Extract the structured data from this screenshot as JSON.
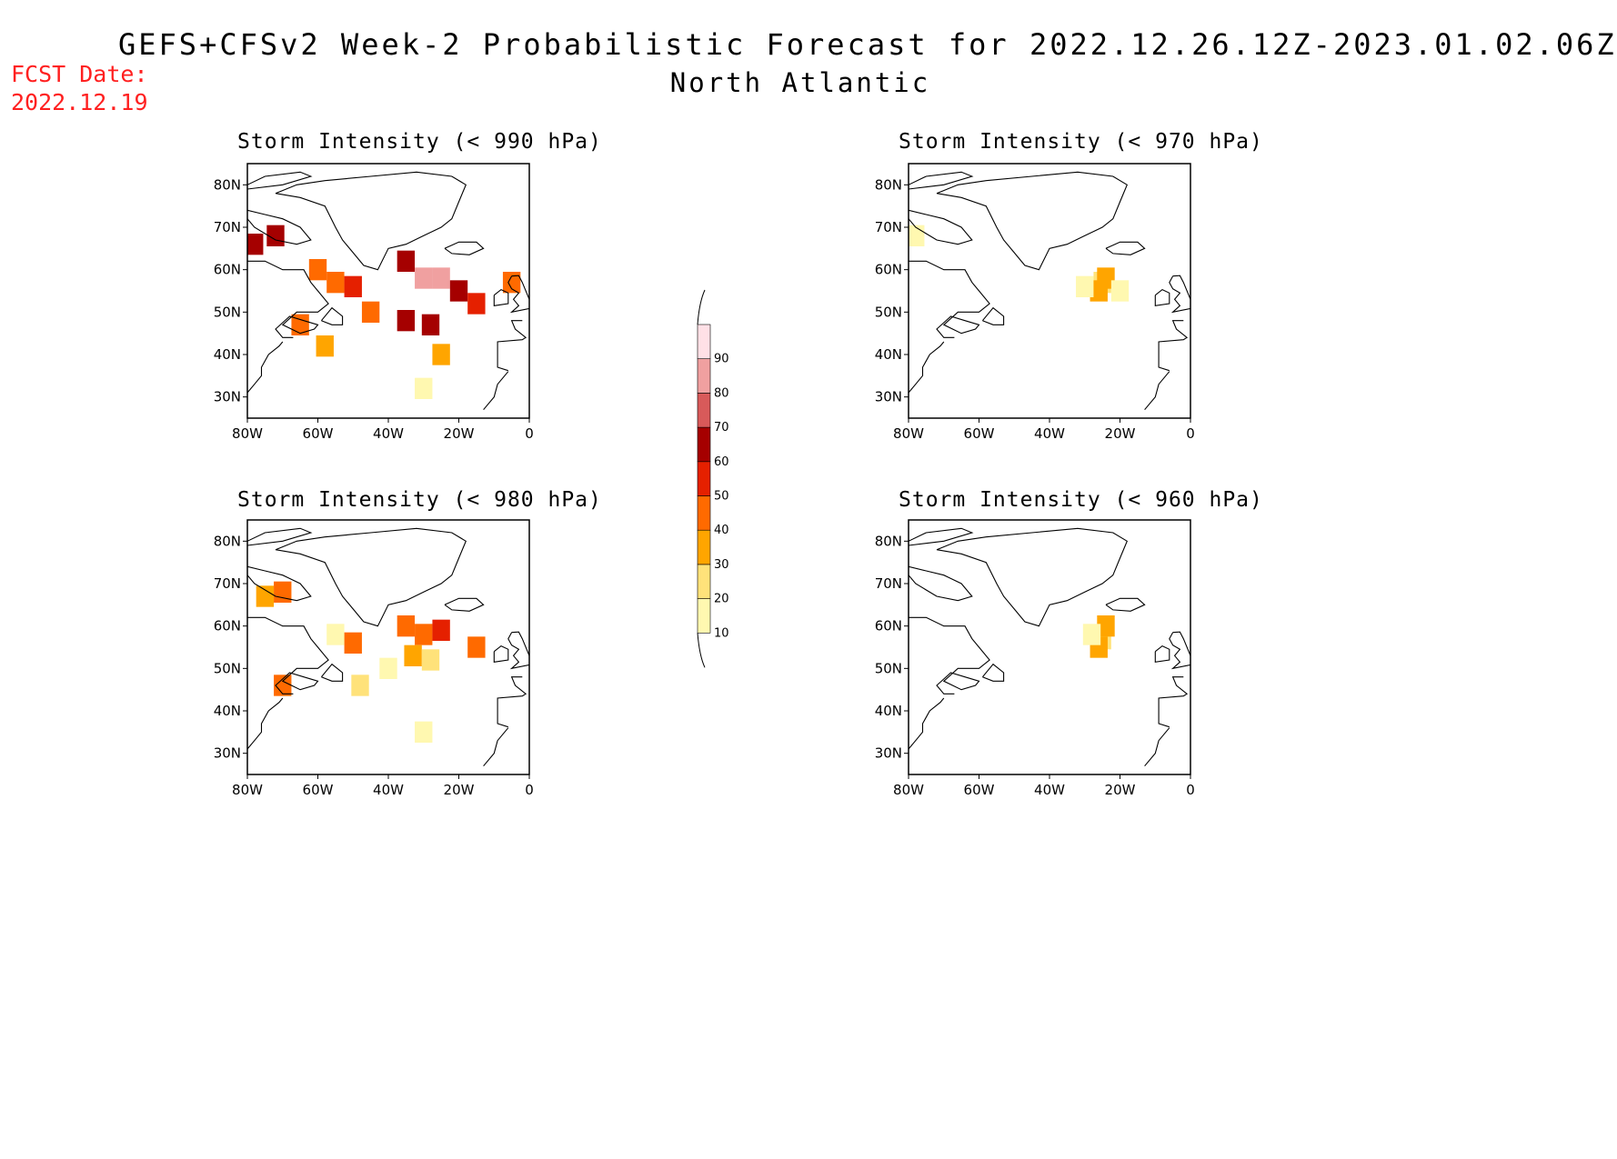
{
  "header": {
    "title": "GEFS+CFSv2 Week-2 Probabilistic Forecast for 2022.12.26.12Z-2023.01.02.06Z",
    "region": "North Atlantic",
    "fcst_date_label": "FCST Date:",
    "fcst_date_value": "2022.12.19"
  },
  "axes": {
    "lon_ticks": [
      "80W",
      "60W",
      "40W",
      "20W",
      "0"
    ],
    "lat_ticks": [
      "80N",
      "70N",
      "60N",
      "50N",
      "40N",
      "30N"
    ]
  },
  "colorbar": {
    "levels": [
      "10",
      "20",
      "30",
      "40",
      "50",
      "60",
      "70",
      "80",
      "90"
    ],
    "colors": [
      "#fff8b0",
      "#ffe27a",
      "#ffa500",
      "#ff6a00",
      "#e52000",
      "#a50000",
      "#d85a5a",
      "#f0a0a0",
      "#ffe0e6"
    ]
  },
  "panels": [
    {
      "title": "Storm Intensity (< 990 hPa)"
    },
    {
      "title": "Storm Intensity (< 970 hPa)"
    },
    {
      "title": "Storm Intensity (< 980 hPa)"
    },
    {
      "title": "Storm Intensity (< 960 hPa)"
    }
  ],
  "chart_data": [
    {
      "type": "heatmap",
      "title": "Storm Intensity (< 990 hPa)",
      "xlim": [
        -80,
        0
      ],
      "ylim": [
        25,
        85
      ],
      "cells": [
        {
          "lon": -78,
          "lat": 66,
          "v": 65
        },
        {
          "lon": -72,
          "lat": 68,
          "v": 65
        },
        {
          "lon": -60,
          "lat": 60,
          "v": 45
        },
        {
          "lon": -55,
          "lat": 57,
          "v": 45
        },
        {
          "lon": -50,
          "lat": 56,
          "v": 55
        },
        {
          "lon": -45,
          "lat": 50,
          "v": 40
        },
        {
          "lon": -35,
          "lat": 62,
          "v": 65
        },
        {
          "lon": -30,
          "lat": 58,
          "v": 80
        },
        {
          "lon": -25,
          "lat": 58,
          "v": 85
        },
        {
          "lon": -20,
          "lat": 55,
          "v": 65
        },
        {
          "lon": -35,
          "lat": 48,
          "v": 60
        },
        {
          "lon": -28,
          "lat": 47,
          "v": 60
        },
        {
          "lon": -15,
          "lat": 52,
          "v": 55
        },
        {
          "lon": -58,
          "lat": 42,
          "v": 35
        },
        {
          "lon": -65,
          "lat": 47,
          "v": 45
        },
        {
          "lon": -25,
          "lat": 40,
          "v": 30
        },
        {
          "lon": -5,
          "lat": 57,
          "v": 45
        },
        {
          "lon": -30,
          "lat": 32,
          "v": 15
        }
      ]
    },
    {
      "type": "heatmap",
      "title": "Storm Intensity (< 970 hPa)",
      "xlim": [
        -80,
        0
      ],
      "ylim": [
        25,
        85
      ],
      "cells": [
        {
          "lon": -25,
          "lat": 57,
          "v": 25
        },
        {
          "lon": -24,
          "lat": 58,
          "v": 35
        },
        {
          "lon": -26,
          "lat": 55,
          "v": 35
        },
        {
          "lon": -30,
          "lat": 56,
          "v": 15
        },
        {
          "lon": -20,
          "lat": 55,
          "v": 15
        },
        {
          "lon": -78,
          "lat": 68,
          "v": 15
        }
      ]
    },
    {
      "type": "heatmap",
      "title": "Storm Intensity (< 980 hPa)",
      "xlim": [
        -80,
        0
      ],
      "ylim": [
        25,
        85
      ],
      "cells": [
        {
          "lon": -75,
          "lat": 67,
          "v": 35
        },
        {
          "lon": -70,
          "lat": 68,
          "v": 40
        },
        {
          "lon": -50,
          "lat": 56,
          "v": 45
        },
        {
          "lon": -55,
          "lat": 58,
          "v": 15
        },
        {
          "lon": -35,
          "lat": 60,
          "v": 45
        },
        {
          "lon": -30,
          "lat": 58,
          "v": 40
        },
        {
          "lon": -25,
          "lat": 59,
          "v": 55
        },
        {
          "lon": -33,
          "lat": 53,
          "v": 30
        },
        {
          "lon": -28,
          "lat": 52,
          "v": 25
        },
        {
          "lon": -15,
          "lat": 55,
          "v": 45
        },
        {
          "lon": -40,
          "lat": 50,
          "v": 15
        },
        {
          "lon": -48,
          "lat": 46,
          "v": 25
        },
        {
          "lon": -70,
          "lat": 46,
          "v": 45
        },
        {
          "lon": -30,
          "lat": 35,
          "v": 15
        }
      ]
    },
    {
      "type": "heatmap",
      "title": "Storm Intensity (< 960 hPa)",
      "xlim": [
        -80,
        0
      ],
      "ylim": [
        25,
        85
      ],
      "cells": [
        {
          "lon": -25,
          "lat": 57,
          "v": 25
        },
        {
          "lon": -24,
          "lat": 60,
          "v": 35
        },
        {
          "lon": -26,
          "lat": 55,
          "v": 35
        },
        {
          "lon": -28,
          "lat": 58,
          "v": 15
        }
      ]
    }
  ]
}
